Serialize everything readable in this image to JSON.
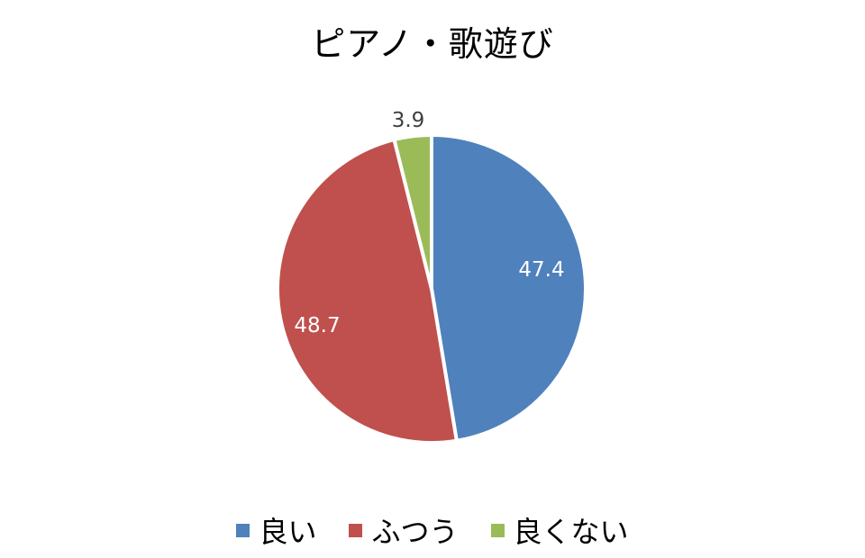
{
  "chart_data": {
    "type": "pie",
    "title": "ピアノ・歌遊び",
    "categories": [
      "良い",
      "ふつう",
      "良くない"
    ],
    "values": [
      47.4,
      48.7,
      3.9
    ],
    "colors": [
      "#4f81bd",
      "#c0504d",
      "#9bbb59"
    ],
    "data_labels": [
      "47.4",
      "48.7",
      "3.9"
    ],
    "start_angle": "12 o'clock, clockwise",
    "legend_position": "bottom"
  },
  "legend": [
    {
      "label": "良い",
      "color": "#4f81bd"
    },
    {
      "label": "ふつう",
      "color": "#c0504d"
    },
    {
      "label": "良くない",
      "color": "#9bbb59"
    }
  ]
}
